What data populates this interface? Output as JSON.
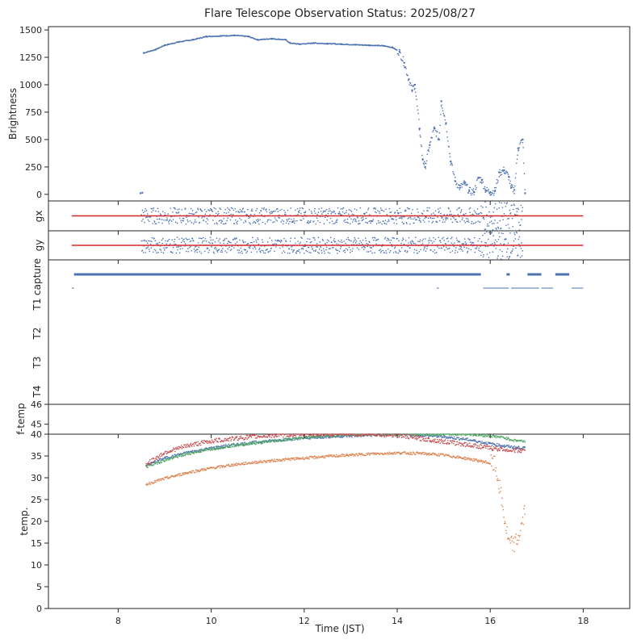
{
  "title": "Flare Telescope Observation Status: 2025/08/27",
  "xlabel": "Time (JST)",
  "xlim": [
    6.5,
    19.0
  ],
  "xticks": [
    8,
    10,
    12,
    14,
    16,
    18
  ],
  "colors": {
    "blue": "#4c72b0",
    "orange": "#dd8452",
    "green": "#55a868",
    "red": "#c44e52"
  },
  "chart_data": [
    {
      "type": "scatter",
      "panel": "brightness",
      "ylabel": "Brightness",
      "ylim": [
        -60,
        1530
      ],
      "yticks": [
        0,
        250,
        500,
        750,
        1000,
        1250,
        1500
      ],
      "series": [
        {
          "color": "#4c72b0",
          "x": [
            8.48,
            8.52,
            8.55,
            8.8,
            9.0,
            9.3,
            9.6,
            9.9,
            10.2,
            10.5,
            10.8,
            11.0,
            11.3,
            11.6,
            11.7,
            11.9,
            12.2,
            12.5,
            12.8,
            13.1,
            13.4,
            13.7,
            13.9,
            14.05,
            14.15,
            14.25,
            14.32,
            14.38,
            14.48,
            14.55,
            14.6,
            14.7,
            14.8,
            14.9,
            14.95,
            15.05,
            15.15,
            15.25,
            15.35,
            15.45,
            15.55,
            15.65,
            15.75,
            15.82,
            15.9,
            16.0,
            16.1,
            16.2,
            16.3,
            16.4,
            16.45,
            16.52,
            16.6,
            16.7,
            16.75
          ],
          "y": [
            10,
            15,
            1290,
            1320,
            1360,
            1390,
            1410,
            1440,
            1445,
            1450,
            1440,
            1410,
            1420,
            1410,
            1380,
            1370,
            1380,
            1375,
            1370,
            1365,
            1360,
            1355,
            1340,
            1300,
            1200,
            1050,
            950,
            1000,
            600,
            320,
            250,
            450,
            600,
            500,
            850,
            650,
            300,
            120,
            60,
            100,
            30,
            20,
            150,
            130,
            40,
            20,
            30,
            200,
            220,
            160,
            60,
            40,
            420,
            500,
            10
          ]
        }
      ]
    },
    {
      "type": "scatter",
      "panel": "gx",
      "ylabel": "gx",
      "ylim": [
        -1,
        1
      ],
      "reference_line": {
        "x": [
          7.0,
          18.0
        ],
        "y": [
          0,
          0
        ],
        "color": "#d62728"
      },
      "series": [
        {
          "color": "#4c72b0",
          "x": [
            8.5,
            16.7
          ],
          "y": [
            0,
            0
          ]
        }
      ]
    },
    {
      "type": "scatter",
      "panel": "gy",
      "ylabel": "gy",
      "ylim": [
        -1,
        1
      ],
      "reference_line": {
        "x": [
          7.0,
          18.0
        ],
        "y": [
          0,
          0
        ],
        "color": "#d62728"
      },
      "series": [
        {
          "color": "#4c72b0",
          "x": [
            8.5,
            16.7
          ],
          "y": [
            0,
            0
          ]
        }
      ]
    },
    {
      "type": "line",
      "panel": "capture",
      "ylabels": [
        "capture",
        "T1",
        "T2",
        "T3",
        "T4"
      ],
      "series": [
        {
          "color": "#4c72b0",
          "row": "capture",
          "segments": [
            [
              7.05,
              15.8
            ],
            [
              16.35,
              16.42
            ],
            [
              16.8,
              17.1
            ],
            [
              17.4,
              17.7
            ]
          ]
        },
        {
          "color": "#4c72b0",
          "row": "T1",
          "segments": [
            [
              7.0,
              7.05
            ],
            [
              14.85,
              14.9
            ],
            [
              15.85,
              16.4
            ],
            [
              16.45,
              17.05
            ],
            [
              17.1,
              17.35
            ],
            [
              17.75,
              18.0
            ]
          ]
        }
      ]
    },
    {
      "type": "scatter",
      "panel": "f-temp",
      "ylabel": "f-temp",
      "ylim": [
        44.5,
        46
      ],
      "yticks": [
        45,
        46
      ],
      "series": []
    },
    {
      "type": "scatter",
      "panel": "temp",
      "ylabel": "temp.",
      "ylim": [
        0,
        40
      ],
      "yticks": [
        0,
        5,
        10,
        15,
        20,
        25,
        30,
        35,
        40
      ],
      "series": [
        {
          "color": "#4c72b0",
          "x": [
            8.6,
            9.0,
            9.5,
            10.0,
            10.5,
            11.0,
            11.5,
            12.0,
            12.5,
            13.0,
            13.5,
            14.0,
            14.5,
            15.0,
            15.5,
            16.0,
            16.5,
            16.75
          ],
          "y": [
            32.8,
            34.5,
            35.8,
            36.8,
            37.6,
            38.2,
            38.7,
            39.1,
            39.4,
            39.6,
            39.8,
            40,
            39.8,
            39.4,
            38.8,
            37.8,
            37.0,
            36.8
          ]
        },
        {
          "color": "#dd8452",
          "x": [
            8.6,
            9.0,
            9.5,
            10.0,
            10.5,
            11.0,
            11.5,
            12.0,
            12.5,
            13.0,
            13.5,
            14.0,
            14.5,
            15.0,
            15.5,
            15.9,
            16.1,
            16.2,
            16.3,
            16.4,
            16.5,
            16.6,
            16.7,
            16.75
          ],
          "y": [
            28.5,
            29.8,
            31.2,
            32.2,
            33.0,
            33.6,
            34.1,
            34.5,
            34.9,
            35.2,
            35.5,
            35.7,
            35.6,
            35.2,
            34.4,
            33.6,
            33.0,
            28.0,
            21.0,
            15.0,
            14.5,
            16.0,
            20.0,
            23.0
          ]
        },
        {
          "color": "#55a868",
          "x": [
            8.6,
            9.0,
            9.5,
            10.0,
            10.5,
            11.0,
            11.5,
            12.0,
            12.5,
            13.0,
            13.5,
            14.0,
            14.5,
            15.0,
            15.5,
            16.0,
            16.3,
            16.5,
            16.75
          ],
          "y": [
            32.5,
            34.0,
            35.5,
            36.6,
            37.4,
            38.0,
            38.6,
            39.2,
            39.6,
            39.9,
            40,
            40,
            40,
            40,
            40,
            39.6,
            39.2,
            38.6,
            38.4
          ]
        },
        {
          "color": "#c44e52",
          "x": [
            8.6,
            9.0,
            9.5,
            10.0,
            10.5,
            11.0,
            11.5,
            12.0,
            12.5,
            13.0,
            13.5,
            14.0,
            14.5,
            15.0,
            15.5,
            16.0,
            16.5,
            16.75
          ],
          "y": [
            33.0,
            35.8,
            37.4,
            38.4,
            39.0,
            39.5,
            39.8,
            40,
            40,
            40,
            40,
            39.8,
            39.0,
            38.3,
            37.6,
            36.8,
            36.3,
            36.2
          ]
        }
      ]
    }
  ]
}
